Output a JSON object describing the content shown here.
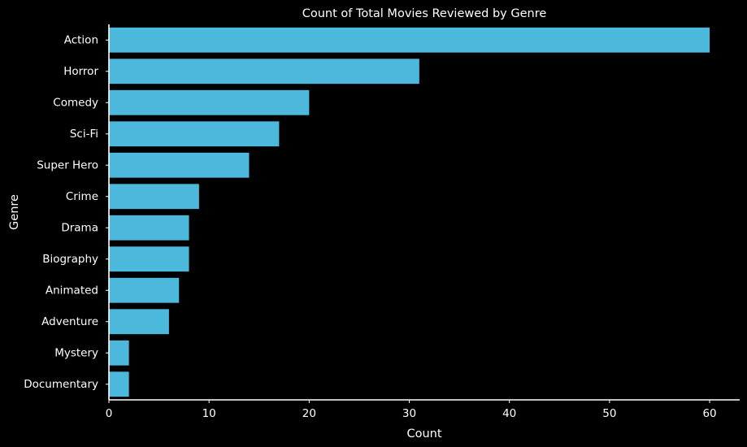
{
  "chart_data": {
    "type": "bar",
    "orientation": "horizontal",
    "title": "Count of Total Movies Reviewed by Genre",
    "xlabel": "Count",
    "ylabel": "Genre",
    "categories": [
      "Action",
      "Horror",
      "Comedy",
      "Sci-Fi",
      "Super Hero",
      "Crime",
      "Drama",
      "Biography",
      "Animated",
      "Adventure",
      "Mystery",
      "Documentary"
    ],
    "values": [
      60,
      31,
      20,
      17,
      14,
      9,
      8,
      8,
      7,
      6,
      2,
      2
    ],
    "xlim": [
      0,
      63
    ],
    "xticks": [
      0,
      10,
      20,
      30,
      40,
      50,
      60
    ],
    "grid": false,
    "bar_color": "#4cb8dc",
    "background_color": "#000000",
    "text_color": "#ffffff"
  }
}
